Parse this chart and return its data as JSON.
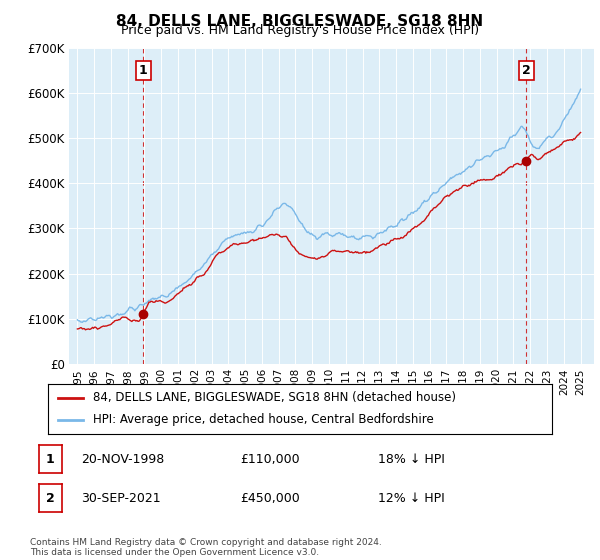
{
  "title": "84, DELLS LANE, BIGGLESWADE, SG18 8HN",
  "subtitle": "Price paid vs. HM Land Registry's House Price Index (HPI)",
  "hpi_label": "HPI: Average price, detached house, Central Bedfordshire",
  "price_label": "84, DELLS LANE, BIGGLESWADE, SG18 8HN (detached house)",
  "sale1_date": "20-NOV-1998",
  "sale1_price": "£110,000",
  "sale1_hpi": "18% ↓ HPI",
  "sale2_date": "30-SEP-2021",
  "sale2_price": "£450,000",
  "sale2_hpi": "12% ↓ HPI",
  "footnote": "Contains HM Land Registry data © Crown copyright and database right 2024.\nThis data is licensed under the Open Government Licence v3.0.",
  "hpi_color": "#7ab8e8",
  "hpi_fill": "#daeaf7",
  "price_color": "#cc1111",
  "marker_color": "#aa0000",
  "bg_color": "#ffffff",
  "grid_color": "#c8d8e8",
  "ylim": [
    0,
    700000
  ],
  "yticks": [
    0,
    100000,
    200000,
    300000,
    400000,
    500000,
    600000,
    700000
  ],
  "ytick_labels": [
    "£0",
    "£100K",
    "£200K",
    "£300K",
    "£400K",
    "£500K",
    "£600K",
    "£700K"
  ],
  "sale1_x": 1998.92,
  "sale1_y": 110000,
  "sale2_x": 2021.75,
  "sale2_y": 450000,
  "xlim_left": 1994.5,
  "xlim_right": 2025.8
}
